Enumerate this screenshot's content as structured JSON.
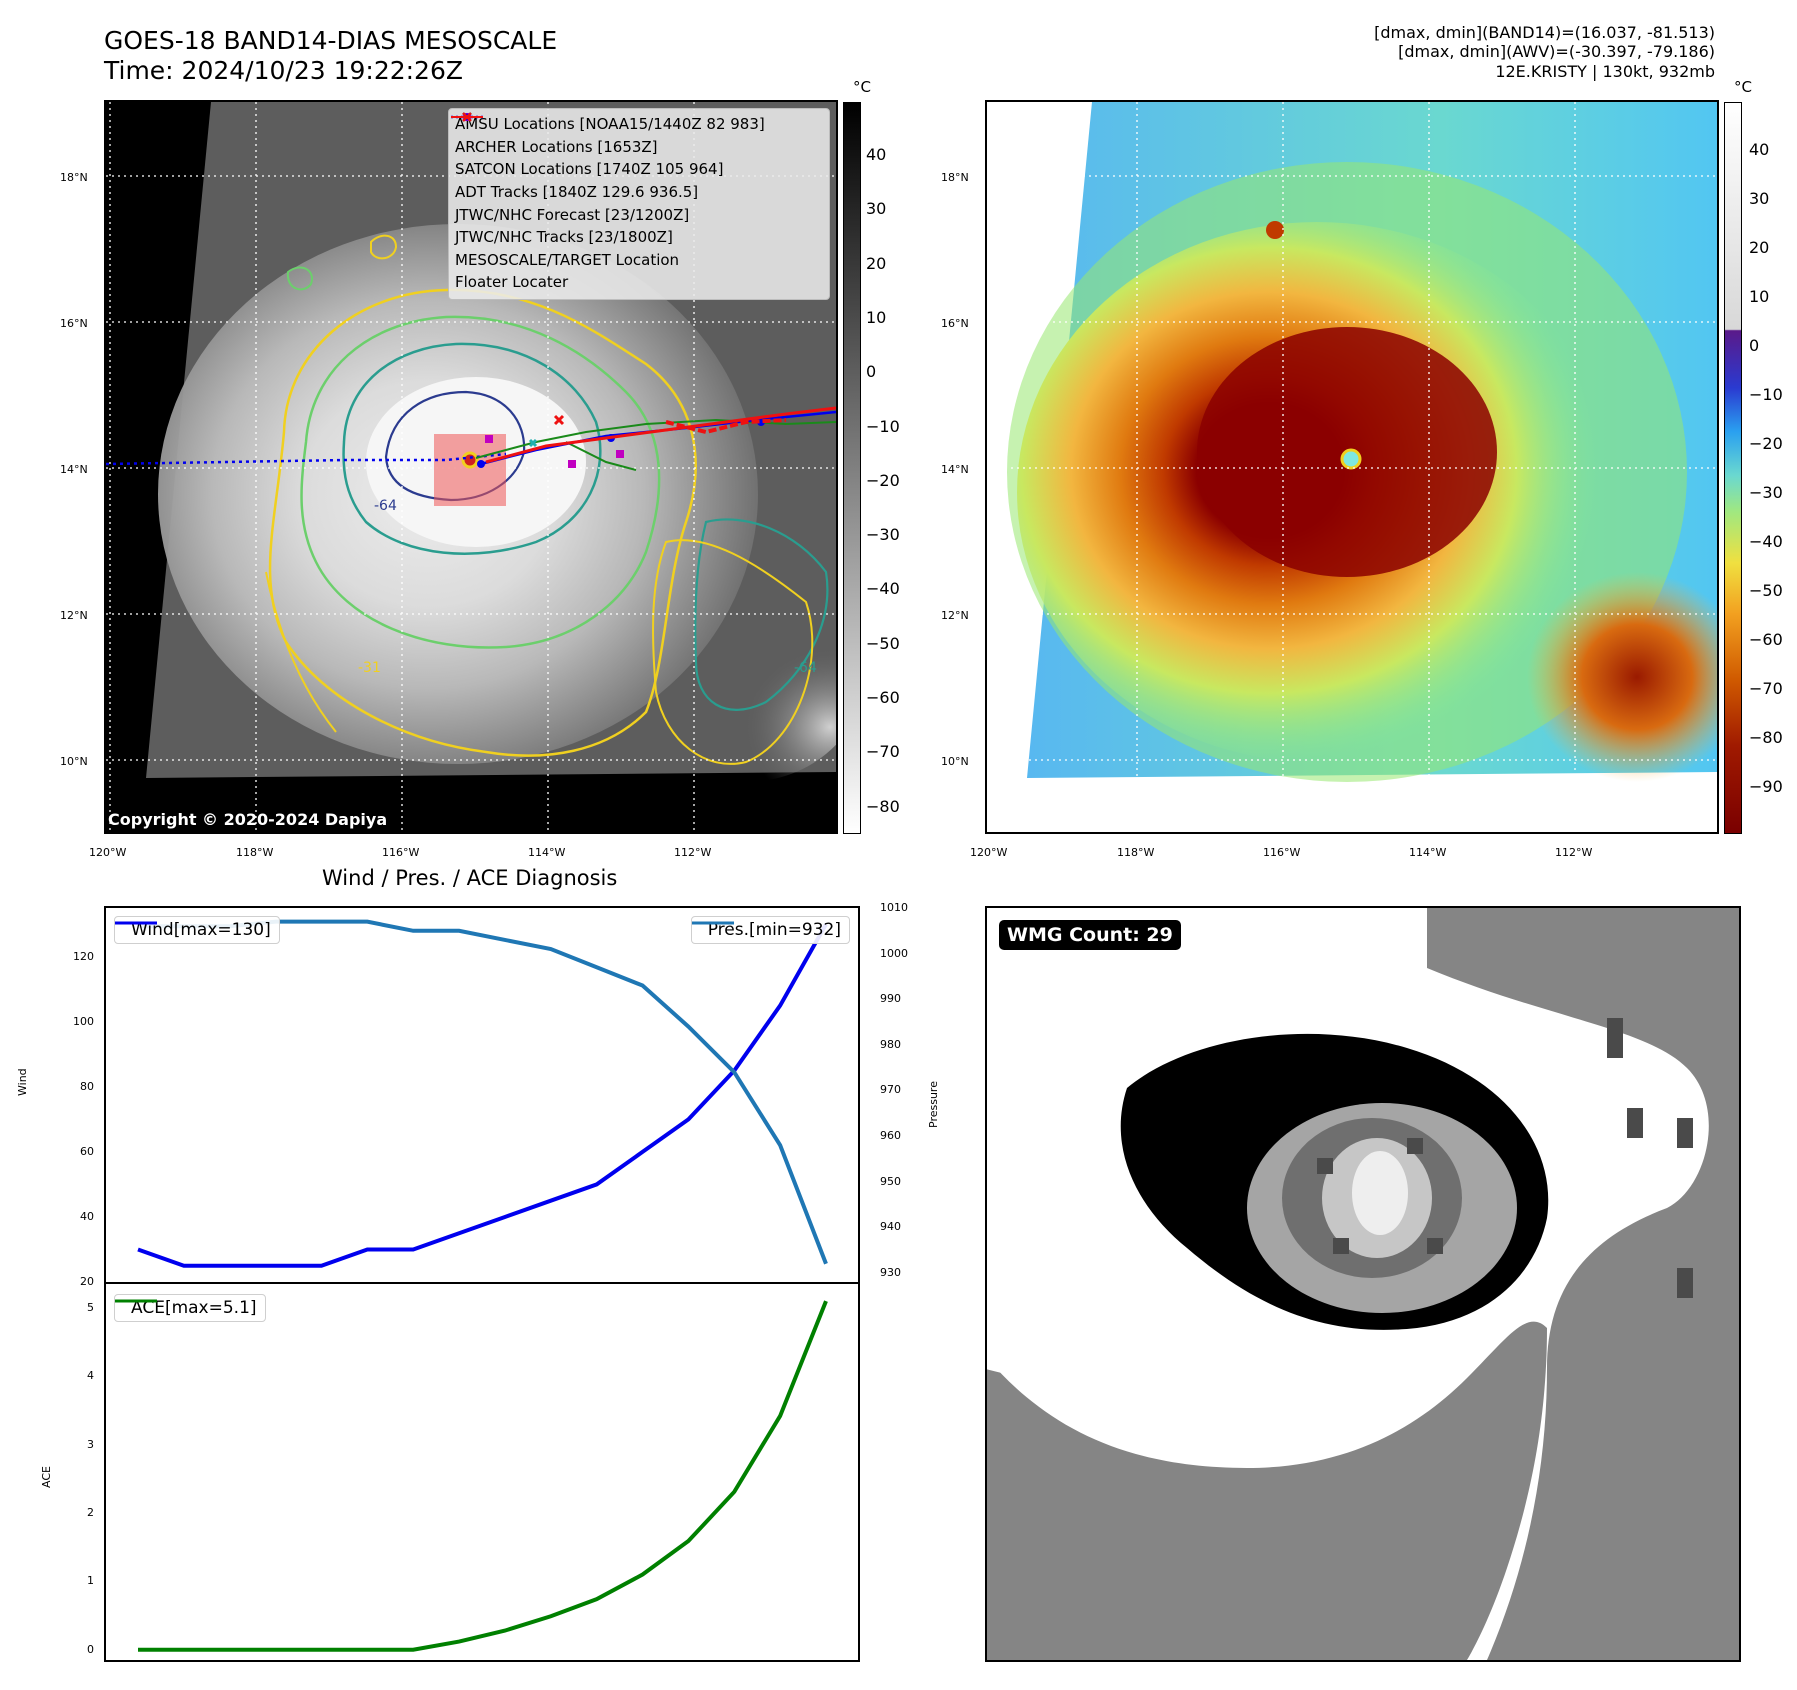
{
  "header": {
    "title_line1": "GOES-18 BAND14-DIAS MESOSCALE",
    "title_line2": "Time: 2024/10/23 19:22:26Z",
    "info_line1": "[dmax, dmin](BAND14)=(16.037, -81.513)",
    "info_line2": "[dmax, dmin](AWV)=(-30.397, -79.186)",
    "info_line3": "12E.KRISTY | 130kt, 932mb"
  },
  "map": {
    "lat_labels": [
      "18°N",
      "16°N",
      "14°N",
      "12°N",
      "10°N"
    ],
    "lon_labels": [
      "120°W",
      "118°W",
      "116°W",
      "114°W",
      "112°W"
    ],
    "colorbar_unit": "°C",
    "gray_colorbar_ticks": [
      "40",
      "30",
      "20",
      "10",
      "0",
      "−10",
      "−20",
      "−30",
      "−40",
      "−50",
      "−60",
      "−70",
      "−80"
    ],
    "color_colorbar_ticks": [
      "40",
      "30",
      "20",
      "10",
      "0",
      "−10",
      "−20",
      "−30",
      "−40",
      "−50",
      "−60",
      "−70",
      "−80",
      "−90"
    ],
    "contour_labels": [
      "-64",
      "-31",
      "-64"
    ],
    "copyright": "Copyright © 2020-2024 Dapiya",
    "colors": {
      "amsu": "#c000c0",
      "archer": "#c000c0",
      "satcon": "#20b0b0",
      "adt": "#1a8a1a",
      "forecast": "#0000ee",
      "tracks": "#0000ee",
      "target": "#ee1111",
      "floater": "#ee1111"
    }
  },
  "legend": {
    "items": [
      {
        "label": "AMSU Locations [NOAA15/1440Z 82 983]"
      },
      {
        "label": "ARCHER Locations [1653Z]"
      },
      {
        "label": "SATCON Locations [1740Z 105 964]"
      },
      {
        "label": "ADT Tracks [1840Z 129.6 936.5]"
      },
      {
        "label": "JTWC/NHC Forecast [23/1200Z]"
      },
      {
        "label": "JTWC/NHC Tracks [23/1800Z]"
      },
      {
        "label": "MESOSCALE/TARGET Location"
      },
      {
        "label": "Floater Locater"
      }
    ]
  },
  "diagnosis": {
    "title": "Wind / Pres. / ACE Diagnosis",
    "wind_axis_label": "Wind",
    "pressure_axis_label": "Pressure",
    "ace_axis_label": "ACE",
    "wind_legend": "Wind[max=130]",
    "pressure_legend": "Pres.[min=932]",
    "ace_legend": "ACE[max=5.1]",
    "wind_ticks": [
      "20",
      "40",
      "60",
      "80",
      "100",
      "120"
    ],
    "pressure_ticks": [
      "930",
      "940",
      "950",
      "960",
      "970",
      "980",
      "990",
      "1000",
      "1010"
    ],
    "ace_ticks": [
      "0",
      "1",
      "2",
      "3",
      "4",
      "5"
    ]
  },
  "wmg": {
    "badge": "WMG Count: 29"
  },
  "chart_data": [
    {
      "type": "line",
      "title": "Wind / Pres. / ACE Diagnosis",
      "x": [
        0,
        1,
        2,
        3,
        4,
        5,
        6,
        7,
        8,
        9,
        10,
        11,
        12,
        13,
        14,
        15
      ],
      "series": [
        {
          "name": "Wind[max=130]",
          "axis": "left",
          "ylabel": "Wind",
          "ylim": [
            20,
            135
          ],
          "color": "#0000ee",
          "values": [
            30,
            25,
            25,
            25,
            25,
            30,
            30,
            35,
            40,
            45,
            50,
            60,
            70,
            85,
            105,
            130
          ]
        },
        {
          "name": "Pres.[min=932]",
          "axis": "right",
          "ylabel": "Pressure",
          "ylim": [
            928,
            1010
          ],
          "color": "#1f77b4",
          "values": [
            1006,
            1006,
            1006,
            1007,
            1007,
            1007,
            1005,
            1005,
            1003,
            1001,
            997,
            993,
            984,
            974,
            958,
            932
          ]
        }
      ]
    },
    {
      "type": "line",
      "x": [
        0,
        1,
        2,
        3,
        4,
        5,
        6,
        7,
        8,
        9,
        10,
        11,
        12,
        13,
        14,
        15
      ],
      "series": [
        {
          "name": "ACE[max=5.1]",
          "ylabel": "ACE",
          "ylim": [
            -0.15,
            5.35
          ],
          "color": "#008000",
          "values": [
            0,
            0,
            0,
            0,
            0,
            0,
            0,
            0.12,
            0.28,
            0.49,
            0.74,
            1.1,
            1.59,
            2.31,
            3.42,
            5.1
          ]
        }
      ]
    }
  ]
}
